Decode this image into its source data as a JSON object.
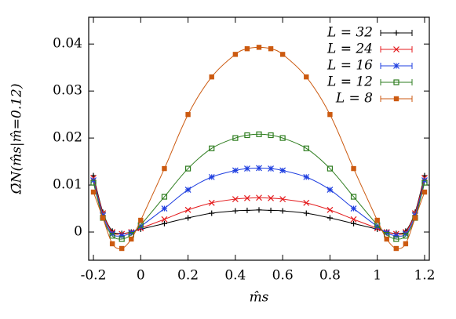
{
  "chart_data": {
    "type": "line",
    "y_label": "Ω̄N(m̂s|m̂=0.12)",
    "x_label": "m̂s",
    "x": [
      -0.2,
      -0.16,
      -0.12,
      -0.08,
      -0.04,
      0,
      0.1,
      0.2,
      0.3,
      0.4,
      0.45,
      0.5,
      0.55,
      0.6,
      0.7,
      0.8,
      0.9,
      1.0,
      1.04,
      1.08,
      1.12,
      1.16,
      1.2
    ],
    "series": [
      {
        "name": "L = 32",
        "color": "#000000",
        "marker": "plus",
        "values": [
          0.012,
          0.0042,
          0.0002,
          -0.0003,
          0,
          0.0006,
          0.0018,
          0.003,
          0.004,
          0.0045,
          0.0046,
          0.0047,
          0.0046,
          0.0045,
          0.004,
          0.003,
          0.0018,
          0.0006,
          0,
          -0.0003,
          0.0002,
          0.0042,
          0.012
        ]
      },
      {
        "name": "L = 24",
        "color": "#e41a1c",
        "marker": "cross",
        "values": [
          0.0115,
          0.004,
          0,
          -0.0004,
          0,
          0.0008,
          0.0027,
          0.0047,
          0.0062,
          0.007,
          0.0072,
          0.0073,
          0.0072,
          0.007,
          0.0062,
          0.0047,
          0.0027,
          0.0008,
          0,
          -0.0004,
          0,
          0.004,
          0.0115
        ]
      },
      {
        "name": "L = 16",
        "color": "#1f3fe0",
        "marker": "star",
        "values": [
          0.011,
          0.0035,
          -0.0004,
          -0.0008,
          -0.0002,
          0.0012,
          0.005,
          0.009,
          0.0117,
          0.0131,
          0.0135,
          0.0136,
          0.0135,
          0.0131,
          0.0117,
          0.009,
          0.005,
          0.0012,
          -0.0002,
          -0.0008,
          -0.0004,
          0.0035,
          0.011
        ]
      },
      {
        "name": "L = 12",
        "color": "#2e7d1f",
        "marker": "open-square",
        "values": [
          0.0105,
          0.003,
          -0.0008,
          -0.0015,
          -0.0006,
          0.0015,
          0.0075,
          0.0135,
          0.0178,
          0.02,
          0.0206,
          0.0208,
          0.0206,
          0.02,
          0.0178,
          0.0135,
          0.0075,
          0.0015,
          -0.0006,
          -0.0015,
          -0.0008,
          0.003,
          0.0105
        ]
      },
      {
        "name": "L = 8",
        "color": "#cc5a10",
        "marker": "filled-square",
        "values": [
          0.0085,
          0.003,
          -0.0025,
          -0.0035,
          -0.0015,
          0.0025,
          0.0135,
          0.025,
          0.033,
          0.0378,
          0.039,
          0.0393,
          0.039,
          0.0378,
          0.033,
          0.025,
          0.0135,
          0.0025,
          -0.0015,
          -0.0035,
          -0.0025,
          0.003,
          0.0085
        ]
      }
    ],
    "xlim": [
      -0.22,
      1.22
    ],
    "ylim": [
      -0.006,
      0.0457
    ],
    "xticks": [
      -0.2,
      0,
      0.2,
      0.4,
      0.6,
      0.8,
      1,
      1.2
    ],
    "yticks": [
      0,
      0.01,
      0.02,
      0.03,
      0.04
    ],
    "legend": "upper right"
  }
}
